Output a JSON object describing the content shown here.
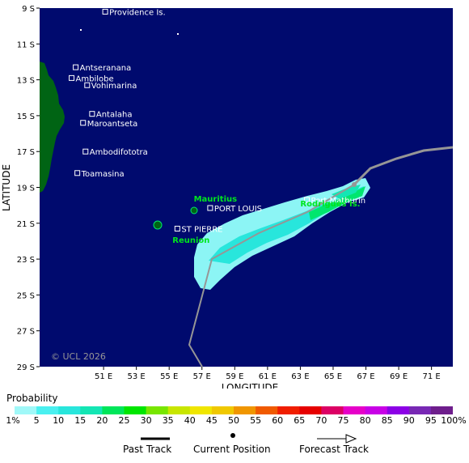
{
  "map": {
    "lat_label": "LATITUDE",
    "lon_label": "LONGITUDE",
    "lat_ticks": [
      "9 S",
      "11 S",
      "13 S",
      "15 S",
      "17 S",
      "19 S",
      "21 S",
      "23 S",
      "25 S",
      "27 S",
      "29 S"
    ],
    "lon_ticks": [
      "51 E",
      "53 E",
      "55 E",
      "57 E",
      "59 E",
      "61 E",
      "63 E",
      "65 E",
      "67 E",
      "69 E",
      "71 E"
    ],
    "copyright": "© UCL 2026",
    "places": [
      {
        "label": "Providence Is.",
        "lon": 51.1,
        "lat": 9.2
      },
      {
        "label": "Antseranana",
        "lon": 49.3,
        "lat": 12.3
      },
      {
        "label": "Ambilobe",
        "lon": 49.05,
        "lat": 12.9
      },
      {
        "label": "Vohimarina",
        "lon": 50.0,
        "lat": 13.3
      },
      {
        "label": "Antalaha",
        "lon": 50.3,
        "lat": 14.9
      },
      {
        "label": "Maroantseta",
        "lon": 49.75,
        "lat": 15.4
      },
      {
        "label": "Ambodifototra",
        "lon": 49.9,
        "lat": 17.0
      },
      {
        "label": "Toamasina",
        "lon": 49.4,
        "lat": 18.2
      },
      {
        "label": "PORT LOUIS",
        "lon": 57.5,
        "lat": 20.15
      },
      {
        "label": "ST PIERRE",
        "lon": 55.5,
        "lat": 21.3
      },
      {
        "label": "Port Mathurin",
        "lon": 63.4,
        "lat": 19.7
      }
    ],
    "regions": [
      {
        "label": "Mauritius",
        "lon": 56.5,
        "lat": 19.8
      },
      {
        "label": "Rodrigues Is.",
        "lon": 63.0,
        "lat": 20.05
      },
      {
        "label": "Reunion",
        "lon": 55.2,
        "lat": 22.1
      }
    ],
    "colors": {
      "ocean": "#000a6e",
      "land": "#006414",
      "track": "#969696",
      "prob_outer": "#8cf5f5",
      "prob_mid": "#28e6dc",
      "prob_inner": "#00e66e"
    }
  },
  "legend": {
    "title": "Probability",
    "labels": [
      "1%",
      "5",
      "10",
      "15",
      "20",
      "25",
      "30",
      "35",
      "40",
      "45",
      "50",
      "55",
      "60",
      "65",
      "70",
      "75",
      "80",
      "85",
      "90",
      "95",
      "100%"
    ],
    "colors": [
      "#a0f8f8",
      "#4af0f0",
      "#28e6dc",
      "#14e6b4",
      "#00e65a",
      "#00e600",
      "#78e600",
      "#c8e600",
      "#f0e600",
      "#f0c800",
      "#f09600",
      "#f05a00",
      "#f01e00",
      "#e60000",
      "#dc0064",
      "#e600c8",
      "#c800e6",
      "#8c00e6",
      "#7828b4",
      "#6e1e8c"
    ]
  },
  "key": {
    "past": "Past Track",
    "current": "Current Position",
    "forecast": "Forecast Track"
  }
}
